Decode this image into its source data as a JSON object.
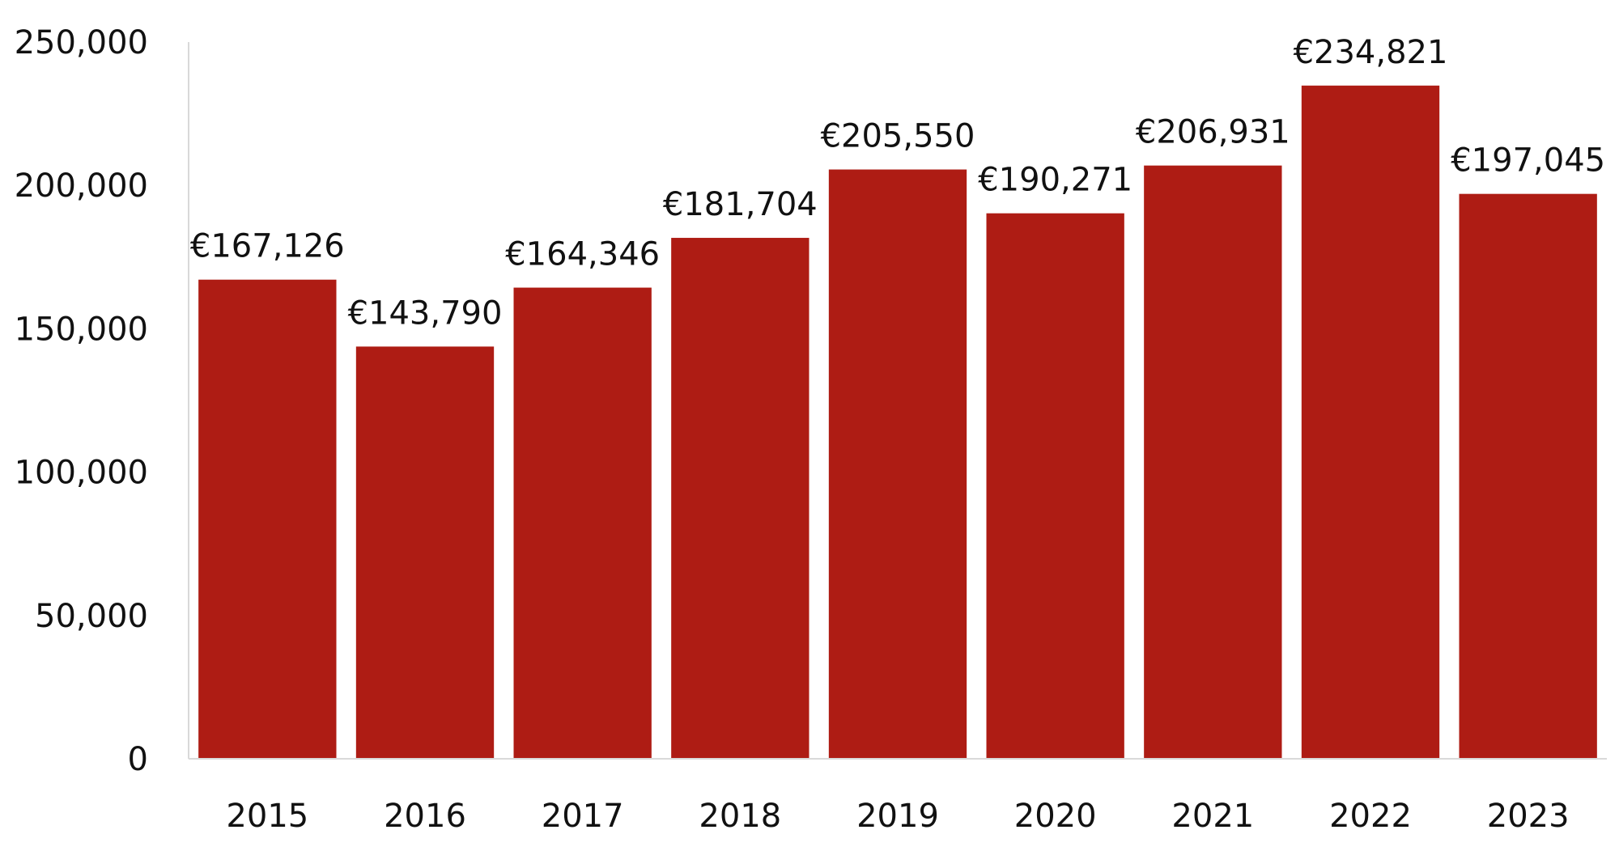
{
  "chart_data": {
    "type": "bar",
    "categories": [
      "2015",
      "2016",
      "2017",
      "2018",
      "2019",
      "2020",
      "2021",
      "2022",
      "2023"
    ],
    "values": [
      167126,
      143790,
      164346,
      181704,
      205550,
      190271,
      206931,
      234821,
      197045
    ],
    "data_labels": [
      "€167,126",
      "€143,790",
      "€164,346",
      "€181,704",
      "€205,550",
      "€190,271",
      "€206,931",
      "€234,821",
      "€197,045"
    ],
    "y_ticks": [
      0,
      50000,
      100000,
      150000,
      200000,
      250000
    ],
    "y_tick_labels": [
      "0",
      "50,000",
      "100,000",
      "150,000",
      "200,000",
      "250,000"
    ],
    "ylim": [
      0,
      250000
    ],
    "grid": false,
    "legend": "none",
    "colors": {
      "bar": "#AE1C14",
      "axis": "#D9D9D9"
    }
  }
}
